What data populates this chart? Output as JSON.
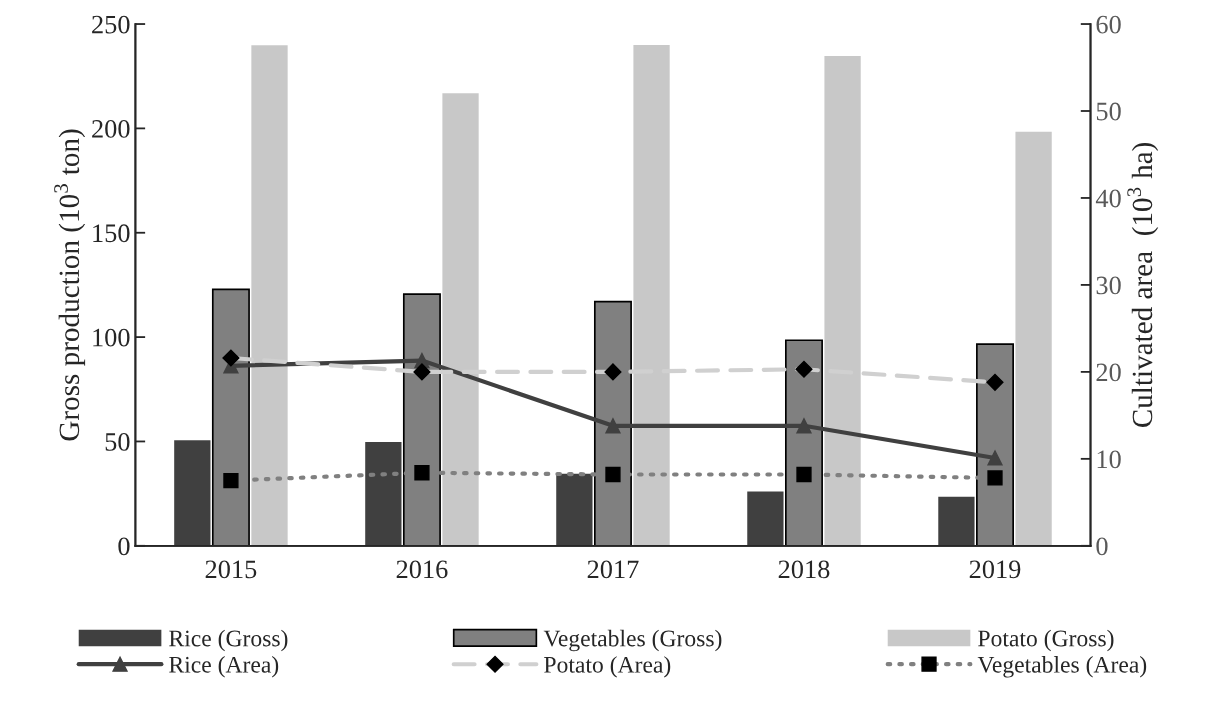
{
  "chart_data": {
    "type": "bar",
    "categories": [
      "2015",
      "2016",
      "2017",
      "2018",
      "2019"
    ],
    "ylabel": "Gross production (10$^{3}$ ton)",
    "y2label": "Cultivated area  (10$^{3}$ ha)",
    "ylim": [
      0,
      250
    ],
    "yticks": [
      0,
      50,
      100,
      150,
      200,
      250
    ],
    "y2lim": [
      0,
      60
    ],
    "y2ticks": [
      0,
      10,
      20,
      30,
      40,
      50,
      60
    ],
    "grid": false,
    "legend": "bottom",
    "series": [
      {
        "name": "Rice (Gross)",
        "color": "#404040",
        "values": [
          50.6,
          49.7,
          34.5,
          26,
          23.5
        ]
      },
      {
        "name": "Vegetables (Gross)",
        "color": "#808080",
        "values": [
          122.9,
          120.6,
          117,
          98.5,
          96.6
        ]
      },
      {
        "name": "Potato (Gross)",
        "color": "#c8c8c8",
        "values": [
          239.8,
          216.8,
          240,
          234.7,
          198.4
        ]
      },
      {
        "name": "Rice (Area)",
        "type": "line",
        "axis": "y2",
        "color": "#404040",
        "marker": "triangle",
        "line_style": "solid",
        "values": [
          20.7,
          21.3,
          13.8,
          13.8,
          10.1
        ]
      },
      {
        "name": "Potato (Area)",
        "type": "line",
        "axis": "y2",
        "color": "#d0d0d0",
        "marker": "diamond",
        "line_style": "dashed",
        "values": [
          21.6,
          20.0,
          20.0,
          20.3,
          18.8
        ]
      },
      {
        "name": "Vegetables (Area)",
        "type": "line",
        "axis": "y2",
        "color": "#808080",
        "marker": "square",
        "line_style": "dotted",
        "values": [
          7.5,
          8.4,
          8.2,
          8.2,
          7.8
        ]
      }
    ]
  }
}
